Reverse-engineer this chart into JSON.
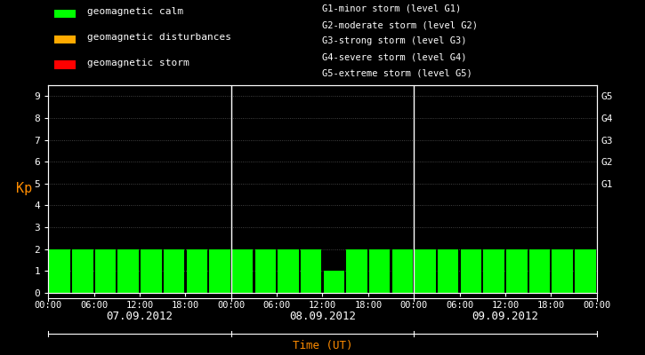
{
  "bg_color": "#000000",
  "bar_color_calm": "#00ff00",
  "bar_color_disturb": "#ffaa00",
  "bar_color_storm": "#ff0000",
  "ylabel": "Kp",
  "xlabel": "Time (UT)",
  "ylim": [
    0,
    9.5
  ],
  "yticks": [
    0,
    1,
    2,
    3,
    4,
    5,
    6,
    7,
    8,
    9
  ],
  "days": [
    "07.09.2012",
    "08.09.2012",
    "09.09.2012"
  ],
  "kp_values": [
    [
      2,
      2,
      2,
      2,
      2,
      2,
      2,
      2
    ],
    [
      2,
      2,
      2,
      2,
      1,
      2,
      2,
      2
    ],
    [
      2,
      2,
      2,
      2,
      2,
      2,
      2,
      2
    ]
  ],
  "legend_items": [
    {
      "label": "geomagnetic calm",
      "color": "#00ff00"
    },
    {
      "label": "geomagnetic disturbances",
      "color": "#ffaa00"
    },
    {
      "label": "geomagnetic storm",
      "color": "#ff0000"
    }
  ],
  "storm_notes": [
    "G1-minor storm (level G1)",
    "G2-moderate storm (level G2)",
    "G3-strong storm (level G3)",
    "G4-severe storm (level G4)",
    "G5-extreme storm (level G5)"
  ],
  "text_color": "#ffffff",
  "orange_color": "#ff8c00",
  "dot_color": "#555555"
}
